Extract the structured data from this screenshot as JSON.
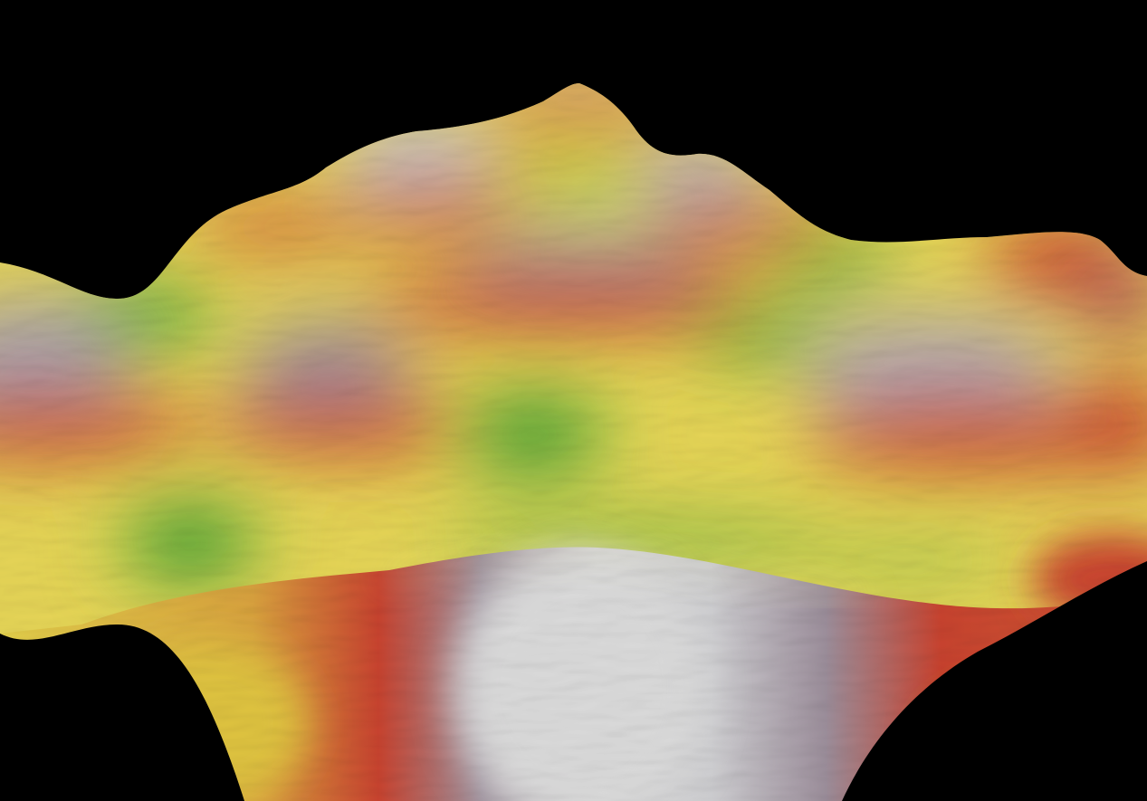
{
  "scene": {
    "background": "#000000",
    "colormap": [
      {
        "level": 0.0,
        "color": "#2a9a30"
      },
      {
        "level": 0.3,
        "color": "#e9dd5c"
      },
      {
        "level": 0.55,
        "color": "#e4c23b"
      },
      {
        "level": 0.72,
        "color": "#c9432f"
      },
      {
        "level": 0.86,
        "color": "#8f8a9a"
      },
      {
        "level": 1.0,
        "color": "#dcdcdc"
      }
    ]
  }
}
